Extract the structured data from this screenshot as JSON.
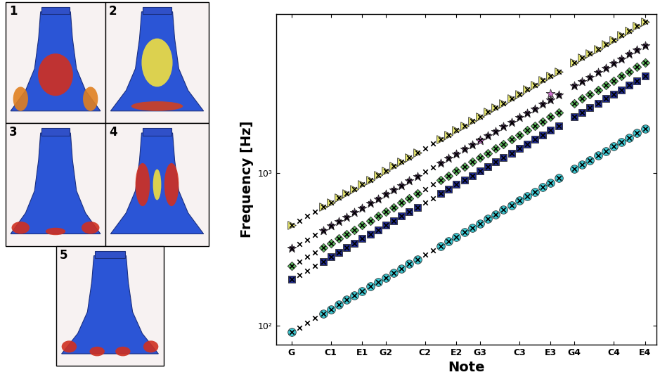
{
  "chart_data": {
    "type": "scatter",
    "x_label": "Note",
    "y_label": "Frequency [Hz]",
    "log": "y",
    "grid": false,
    "categories": [
      "G",
      null,
      null,
      null,
      null,
      "C1",
      null,
      null,
      null,
      "E1",
      null,
      null,
      "G2",
      null,
      null,
      null,
      null,
      "C2",
      null,
      null,
      null,
      "E2",
      null,
      null,
      "G3",
      null,
      null,
      null,
      null,
      "C3",
      null,
      null,
      null,
      "E3",
      null,
      null,
      "G4",
      null,
      null,
      null,
      null,
      "C4",
      null,
      null,
      null,
      "E4"
    ],
    "xlim": [
      -2,
      46.5
    ],
    "ylim": [
      75,
      11000
    ],
    "yticks": [
      {
        "value": 100,
        "label": "10²"
      },
      {
        "value": 1000,
        "label": "10³"
      }
    ],
    "series": [
      {
        "color": "#3cc8d2",
        "marker": "circle",
        "values": [
          91,
          null,
          null,
          null,
          120,
          128,
          137,
          147,
          157,
          168,
          180,
          193,
          206,
          221,
          236,
          253,
          271,
          null,
          null,
          332,
          356,
          381,
          408,
          436,
          467,
          500,
          535,
          573,
          614,
          657,
          703,
          753,
          806,
          863,
          924,
          null,
          1058,
          1133,
          1213,
          1298,
          1390,
          1488,
          1593,
          1705,
          1826,
          1954
        ]
      },
      {
        "color": "#1f2a8c",
        "marker": "square",
        "values": [
          200,
          null,
          null,
          null,
          263,
          281,
          301,
          323,
          345,
          370,
          396,
          424,
          454,
          486,
          520,
          556,
          596,
          null,
          null,
          731,
          782,
          838,
          897,
          960,
          1028,
          1100,
          1178,
          1261,
          1350,
          1445,
          1547,
          1656,
          1773,
          1898,
          2032,
          null,
          2328,
          2493,
          2669,
          2856,
          3058,
          3274,
          3505,
          3751,
          4017,
          4299
        ]
      },
      {
        "color": "#5cb85c",
        "marker": "diamond",
        "values": [
          246,
          null,
          null,
          null,
          323,
          345,
          370,
          396,
          424,
          454,
          486,
          520,
          557,
          596,
          638,
          683,
          731,
          null,
          null,
          897,
          960,
          1028,
          1101,
          1178,
          1261,
          1350,
          1445,
          1547,
          1656,
          1773,
          1898,
          2032,
          2176,
          2329,
          2493,
          null,
          2857,
          3059,
          3275,
          3505,
          3753,
          4018,
          4301,
          4604,
          4930,
          5276
        ]
      },
      {
        "color": "#4a2a55",
        "marker": "star",
        "values": [
          319,
          null,
          null,
          null,
          418,
          448,
          479,
          513,
          549,
          588,
          630,
          674,
          722,
          772,
          827,
          885,
          948,
          null,
          null,
          1163,
          1245,
          1332,
          1427,
          1527,
          1635,
          1750,
          1874,
          2006,
          2147,
          2298,
          2461,
          2634,
          2820,
          3019,
          3232,
          null,
          3703,
          3966,
          4246,
          4543,
          4865,
          5208,
          5576,
          5968,
          6391,
          6839
        ]
      },
      {
        "color": "#e8e870",
        "marker": "triangle",
        "values": [
          455,
          null,
          null,
          null,
          598,
          640,
          685,
          733,
          785,
          840,
          900,
          963,
          1031,
          1104,
          1182,
          1265,
          1354,
          null,
          null,
          1661,
          1778,
          1904,
          2038,
          2182,
          2336,
          2500,
          2677,
          2865,
          3068,
          3284,
          3516,
          3764,
          4029,
          4313,
          4618,
          null,
          5290,
          5665,
          6065,
          6490,
          6950,
          7440,
          7965,
          8525,
          9130,
          9770
        ]
      },
      {
        "color": "#d070d0",
        "marker": "star",
        "values": [
          null,
          null,
          null,
          null,
          null,
          null,
          null,
          null,
          null,
          null,
          null,
          null,
          null,
          null,
          null,
          null,
          null,
          null,
          null,
          null,
          null,
          null,
          null,
          null,
          1630,
          null,
          null,
          null,
          null,
          null,
          null,
          null,
          null,
          3310,
          null,
          null,
          null,
          null,
          null,
          null,
          null,
          null,
          null,
          null,
          null,
          null
        ]
      },
      {
        "color": "#000000",
        "marker": "x",
        "values": [
          91,
          97,
          104,
          112,
          120,
          128,
          137,
          147,
          157,
          168,
          180,
          193,
          206,
          221,
          236,
          253,
          271,
          290,
          310,
          332,
          356,
          381,
          408,
          436,
          467,
          500,
          535,
          573,
          614,
          657,
          703,
          753,
          806,
          863,
          924,
          null,
          1058,
          1133,
          1213,
          1298,
          1390,
          1488,
          1593,
          1705,
          1826,
          1954
        ]
      },
      {
        "color": "#000000",
        "marker": "x",
        "values": [
          200,
          214,
          229,
          246,
          263,
          281,
          301,
          323,
          345,
          370,
          396,
          424,
          454,
          486,
          520,
          556,
          596,
          638,
          683,
          731,
          782,
          838,
          897,
          960,
          1028,
          1100,
          1178,
          1261,
          1350,
          1445,
          1547,
          1656,
          1773,
          1898,
          2032,
          null,
          2328,
          2493,
          2669,
          2856,
          3058,
          3274,
          3505,
          3751,
          4017,
          4299
        ]
      },
      {
        "color": "#000000",
        "marker": "x",
        "values": [
          246,
          263,
          282,
          301,
          323,
          345,
          370,
          396,
          424,
          454,
          486,
          520,
          557,
          596,
          638,
          683,
          731,
          783,
          838,
          897,
          960,
          1028,
          1101,
          1178,
          1261,
          1350,
          1445,
          1547,
          1656,
          1773,
          1898,
          2032,
          2176,
          2329,
          2493,
          null,
          2857,
          3059,
          3275,
          3505,
          3753,
          4018,
          4301,
          4604,
          4930,
          5276
        ]
      },
      {
        "color": "#000000",
        "marker": "x",
        "values": [
          319,
          341,
          365,
          391,
          418,
          448,
          479,
          513,
          549,
          588,
          630,
          674,
          722,
          772,
          827,
          885,
          948,
          1015,
          1086,
          1163,
          1245,
          1332,
          1427,
          1527,
          1635,
          1750,
          1874,
          2006,
          2147,
          2298,
          2461,
          2634,
          2820,
          3019,
          3232,
          null,
          3703,
          3966,
          4246,
          4543,
          4865,
          5208,
          5576,
          5968,
          6391,
          6839
        ]
      },
      {
        "color": "#000000",
        "marker": "x",
        "values": [
          455,
          487,
          522,
          558,
          598,
          640,
          685,
          733,
          785,
          840,
          900,
          963,
          1031,
          1104,
          1182,
          1265,
          1354,
          1450,
          1552,
          1661,
          1778,
          1904,
          2038,
          2182,
          2336,
          2500,
          2677,
          2865,
          3068,
          3284,
          3516,
          3764,
          4029,
          4313,
          4618,
          null,
          5290,
          5665,
          6065,
          6490,
          6950,
          7440,
          7965,
          8525,
          9130,
          9770
        ]
      }
    ]
  },
  "mode_panels": {
    "labels": [
      "1",
      "2",
      "3",
      "4",
      "5"
    ]
  }
}
